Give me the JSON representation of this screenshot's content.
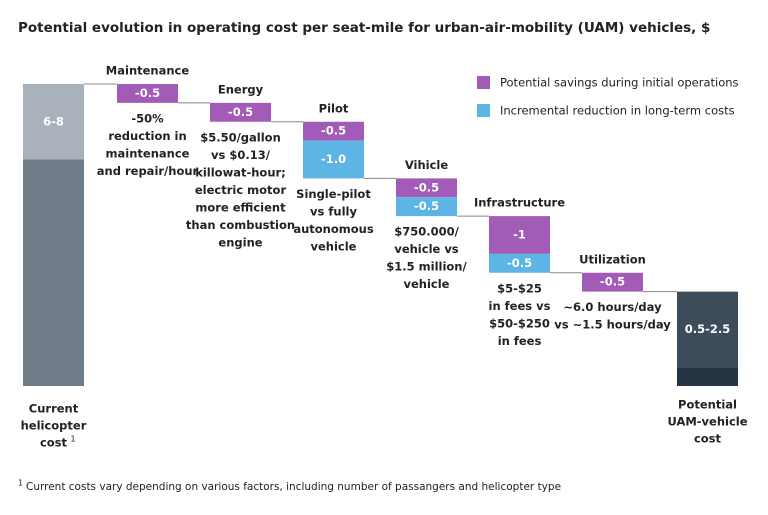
{
  "chart_data": {
    "type": "waterfall",
    "title": "Potential evolution in operating cost per seat-mile for urban-air-mobility (UAM) vehicles, $",
    "categories": [
      [
        "Current",
        "helicopter",
        "cost"
      ],
      [
        "Maintenance"
      ],
      [
        "Energy"
      ],
      [
        "Pilot"
      ],
      [
        "Vihicle"
      ],
      [
        "Infrastructure"
      ],
      [
        "Utilization"
      ],
      [
        "Potential",
        "UAM-vehicle",
        "cost"
      ]
    ],
    "footnote_marker": "1",
    "start": {
      "low": 6,
      "high": 8,
      "label": "6-8",
      "color": "#a9b2ba",
      "base_color": "#6f7c87"
    },
    "end": {
      "low": 0.5,
      "high": 2.5,
      "label": "0.5-2.5",
      "color": "#3c4c5a",
      "base_color": "#243442"
    },
    "series": [
      {
        "name": "Potential savings during initial operations",
        "color": "#a25bb6",
        "values": [
          null,
          -0.5,
          -0.5,
          -0.5,
          -0.5,
          -1,
          -0.5,
          null
        ]
      },
      {
        "name": "Incremental reduction in long-term costs",
        "color": "#5cb5e4",
        "values": [
          null,
          null,
          null,
          -1.0,
          -0.5,
          -0.5,
          null,
          null
        ],
        "value_labels": [
          null,
          null,
          null,
          "-1.0",
          "-0.5",
          "-0.5",
          null,
          null
        ]
      }
    ],
    "notes": [
      null,
      [
        "-50%",
        "reduction in",
        "maintenance",
        "and repair/hour"
      ],
      [
        "$5.50/gallon",
        "vs $0.13/",
        "killowat-hour;",
        "electric motor",
        "more efficient",
        "than combustion",
        "engine"
      ],
      [
        "Single-pilot",
        "vs fully",
        "autonomous",
        "vehicle"
      ],
      [
        "$750.000/",
        "vehicle vs",
        "$1.5 million/",
        "vehicle"
      ],
      [
        "$5-$25",
        "in fees vs",
        "$50-$250",
        "in fees"
      ],
      [
        "~6.0 hours/day",
        "vs ~1.5 hours/day"
      ],
      null
    ],
    "footnote": "Current costs vary depending on various factors, including number of passangers and helicopter type"
  }
}
